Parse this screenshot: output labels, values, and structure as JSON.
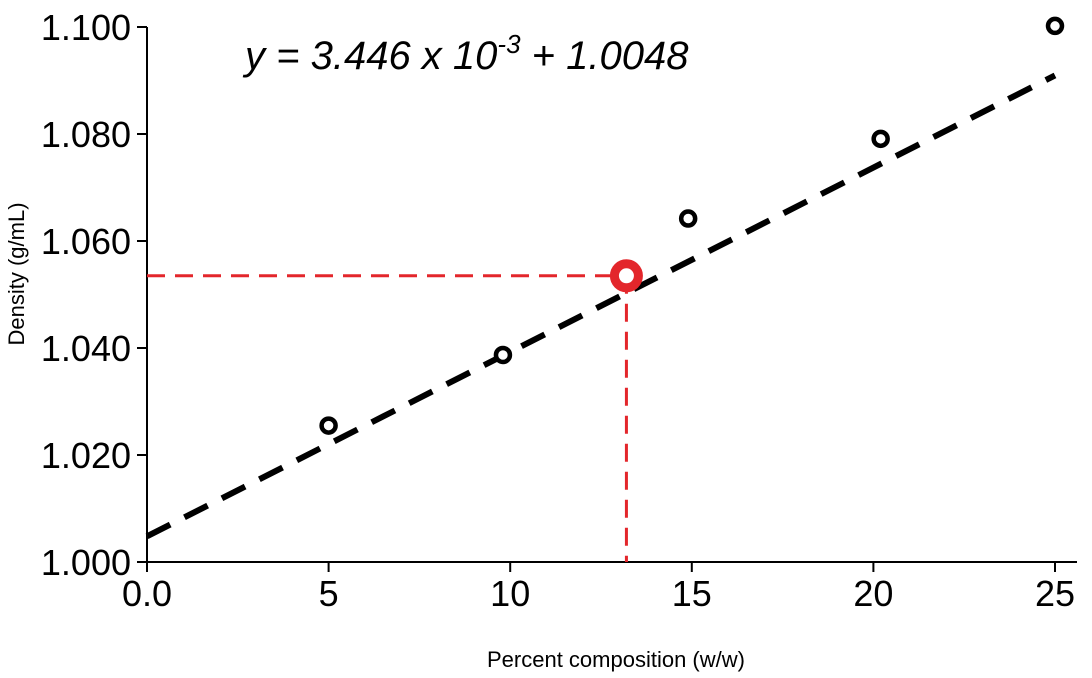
{
  "chart_data": {
    "type": "scatter",
    "title": "",
    "xlabel": "Percent composition (w/w)",
    "ylabel": "Density (g/mL)",
    "xlim": [
      0,
      25
    ],
    "ylim": [
      1.0,
      1.1
    ],
    "x_ticks": [
      0,
      5,
      10,
      15,
      20,
      25
    ],
    "x_tick_labels": [
      "0.0",
      "5",
      "10",
      "15",
      "20",
      "25"
    ],
    "y_ticks": [
      1.0,
      1.02,
      1.04,
      1.06,
      1.08,
      1.1
    ],
    "y_tick_labels": [
      "1.000",
      "1.020",
      "1.040",
      "1.060",
      "1.080",
      "1.100"
    ],
    "grid": false,
    "series": [
      {
        "type": "scatter",
        "marker": "open-circle",
        "color": "#000000",
        "x": [
          5.0,
          9.8,
          14.9,
          20.2,
          25.0
        ],
        "y": [
          1.0255,
          1.0387,
          1.0642,
          1.0791,
          1.1002
        ]
      },
      {
        "type": "line",
        "style": "dashed",
        "color": "#000000",
        "slope": 0.003446,
        "intercept": 1.0048,
        "x": [
          0,
          25
        ]
      }
    ],
    "highlight_point": {
      "x": 13.2,
      "y": 1.0535,
      "color": "#e3262b",
      "guide_lines": "dashed"
    },
    "annotation": {
      "prefix": "y = 3.446 x 10",
      "superscript": "-3",
      "suffix": " + 1.0048"
    }
  }
}
